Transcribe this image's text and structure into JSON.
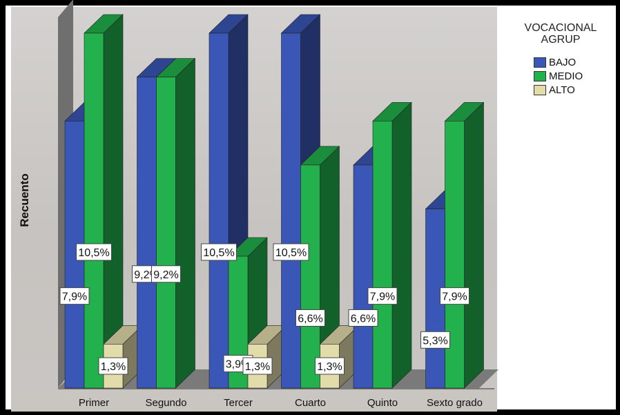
{
  "chart_data": {
    "type": "bar",
    "categories": [
      "Primer",
      "Segundo",
      "Tercer",
      "Cuarto",
      "Quinto",
      "Sexto grado"
    ],
    "series": [
      {
        "name": "BAJO",
        "color": "#3a56b6",
        "values": [
          7.9,
          9.2,
          10.5,
          10.5,
          6.6,
          5.3
        ],
        "labels": [
          "7,9%",
          "9,2%",
          "10,5%",
          "10,5%",
          "6,6%",
          "5,3%"
        ]
      },
      {
        "name": "MEDIO",
        "color": "#22b14c",
        "values": [
          10.5,
          9.2,
          3.9,
          6.6,
          7.9,
          7.9
        ],
        "labels": [
          "10,5%",
          "9,2%",
          "3,9%",
          "6,6%",
          "7,9%",
          "7,9%"
        ]
      },
      {
        "name": "ALTO",
        "color": "#e2dcab",
        "values": [
          1.3,
          0,
          1.3,
          1.3,
          0,
          0
        ],
        "labels": [
          "1,3%",
          "",
          "1,3%",
          "1,3%",
          "",
          ""
        ]
      }
    ],
    "ylabel": "Recuento",
    "legend_title": "VOCACIONAL AGRUP",
    "legend_position": "top-right",
    "ylim": [
      0,
      10.5
    ],
    "grid": false
  }
}
